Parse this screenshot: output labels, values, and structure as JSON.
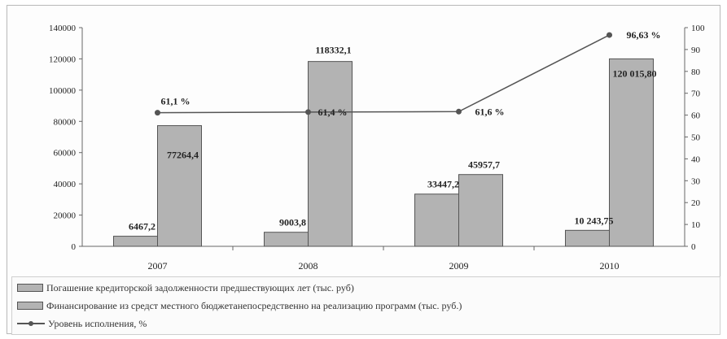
{
  "chart_data": {
    "type": "bar",
    "categories": [
      "2007",
      "2008",
      "2009",
      "2010"
    ],
    "series": [
      {
        "name": "Погашение кредиторской задолженности предшествующих лет (тыс. руб)",
        "type": "bar",
        "axis": "left",
        "values": [
          6467.2,
          9003.8,
          33447.2,
          10243.75
        ],
        "labels": [
          "6467,2",
          "9003,8",
          "33447,2",
          "10 243,75"
        ]
      },
      {
        "name": "Финансирование из средст местного бюджетанепосредственно на реализацию программ (тыс. руб.)",
        "type": "bar",
        "axis": "left",
        "values": [
          77264.4,
          118332.1,
          45957.7,
          120015.8
        ],
        "labels": [
          "77264,4",
          "118332,1",
          "45957,7",
          "120 015,80"
        ]
      },
      {
        "name": "Уровень исполнения, %",
        "type": "line",
        "axis": "right",
        "values": [
          61.1,
          61.4,
          61.6,
          96.63
        ],
        "labels": [
          "61,1 %",
          "61,4 %",
          "61,6 %",
          "96,63 %"
        ]
      }
    ],
    "ylim": [
      0,
      140000
    ],
    "y_ticks": [
      "0",
      "20000",
      "40000",
      "60000",
      "80000",
      "100000",
      "120000",
      "140000"
    ],
    "y2lim": [
      0,
      100
    ],
    "y2_ticks": [
      "0",
      "10",
      "20",
      "30",
      "40",
      "50",
      "60",
      "70",
      "80",
      "90",
      "100"
    ],
    "grid": false,
    "legend": "bottom",
    "colors": {
      "bar": "#b3b3b3",
      "bar_edge": "#555555",
      "line": "#555555",
      "axis": "#666666",
      "text": "#222222"
    }
  }
}
